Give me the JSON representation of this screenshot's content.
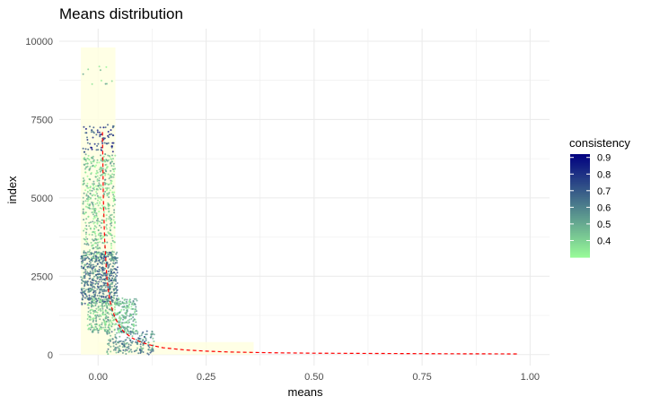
{
  "chart_data": {
    "type": "scatter",
    "title": "Means distribution",
    "xlabel": "means",
    "ylabel": "index",
    "xlim": [
      -0.09,
      1.045
    ],
    "ylim": [
      -350,
      10400
    ],
    "x_ticks": [
      0.0,
      0.25,
      0.5,
      0.75,
      1.0
    ],
    "x_tick_labels": [
      "0.00",
      "0.25",
      "0.50",
      "0.75",
      "1.00"
    ],
    "y_ticks": [
      0,
      2500,
      5000,
      7500,
      10000
    ],
    "y_tick_labels": [
      "0",
      "2500",
      "5000",
      "7500",
      "10000"
    ],
    "grid": true,
    "legend": {
      "title": "consistency",
      "placement": "right",
      "range": [
        0.3,
        0.92
      ],
      "ticks": [
        0.4,
        0.5,
        0.6,
        0.7,
        0.8,
        0.9
      ],
      "tick_labels": [
        "0.4",
        "0.5",
        "0.6",
        "0.7",
        "0.8",
        "0.9"
      ],
      "low_color": "#98FB98",
      "high_color": "#000080"
    },
    "colors": {
      "band": "#FFFFE0",
      "curve": "#FF0000",
      "grid": "#EBEBEB"
    },
    "point_clusters": [
      {
        "x_range": [
          -0.035,
          0.04
        ],
        "y_range": [
          6450,
          7350
        ],
        "consistency": 0.78,
        "count": 70
      },
      {
        "x_range": [
          -0.035,
          0.04
        ],
        "y_range": [
          8600,
          9300
        ],
        "consistency": 0.4,
        "count": 10
      },
      {
        "x_range": [
          -0.035,
          0.04
        ],
        "y_range": [
          3000,
          6400
        ],
        "consistency": 0.42,
        "count": 520
      },
      {
        "x_range": [
          -0.04,
          0.045
        ],
        "y_range": [
          1600,
          3300
        ],
        "consistency": 0.62,
        "count": 560
      },
      {
        "x_range": [
          -0.025,
          0.09
        ],
        "y_range": [
          700,
          1800
        ],
        "consistency": 0.45,
        "count": 450
      },
      {
        "x_range": [
          0.02,
          0.13
        ],
        "y_range": [
          0,
          750
        ],
        "consistency": 0.58,
        "count": 200
      }
    ],
    "band_regions": [
      {
        "x_range": [
          -0.04,
          0.04
        ],
        "y_range": [
          0,
          9800
        ]
      },
      {
        "x_range": [
          0.0,
          0.36
        ],
        "y_range": [
          0,
          400
        ]
      }
    ],
    "fit_curve": {
      "style": "dashed",
      "x": [
        0.01,
        0.012,
        0.015,
        0.02,
        0.025,
        0.03,
        0.04,
        0.05,
        0.06,
        0.08,
        0.1,
        0.125,
        0.15,
        0.2,
        0.25,
        0.3,
        0.4,
        0.5,
        0.6,
        0.7,
        0.8,
        0.9,
        0.97
      ],
      "y": [
        7100,
        5000,
        3700,
        2500,
        1900,
        1550,
        1150,
        900,
        720,
        520,
        390,
        290,
        220,
        150,
        110,
        85,
        60,
        45,
        38,
        32,
        28,
        24,
        22
      ]
    }
  }
}
